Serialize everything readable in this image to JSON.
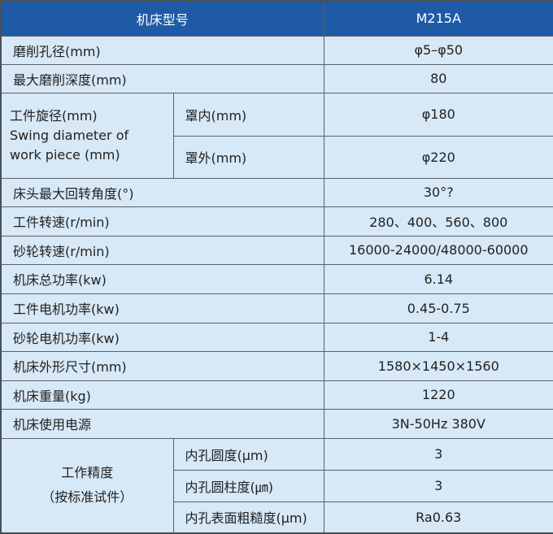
{
  "header": {
    "label": "机床型号",
    "model": "M215A"
  },
  "rows": [
    {
      "label": "磨削孔径(mm)",
      "value": "φ5–φ50"
    },
    {
      "label": "最大磨削深度(mm)",
      "value": "80"
    },
    {
      "label": "床头最大回转角度(°)",
      "value": "30°?"
    },
    {
      "label": "工件转速(r/min)",
      "value": "280、400、560、800"
    },
    {
      "label": "砂轮转速(r/min)",
      "value": "16000-24000/48000-60000"
    },
    {
      "label": "机床总功率(kw)",
      "value": "6.14"
    },
    {
      "label": "工件电机功率(kw)",
      "value": "0.45-0.75"
    },
    {
      "label": "砂轮电机功率(kw)",
      "value": "1-4"
    },
    {
      "label": "机床外形尺寸(mm)",
      "value": "1580×1450×1560"
    },
    {
      "label": "机床重量(kg)",
      "value": "1220"
    },
    {
      "label": "机床使用电源",
      "value": "3N-50Hz 380V"
    }
  ],
  "swing": {
    "label_cn": "工件旋径(mm)",
    "label_en1": "Swing diameter of",
    "label_en2": "work piece (mm)",
    "sub": [
      {
        "label": "罩内(mm)",
        "value": "φ180"
      },
      {
        "label": "罩外(mm)",
        "value": "φ220"
      }
    ]
  },
  "accuracy": {
    "label1": "工作精度",
    "label2": "（按标准试件）",
    "sub": [
      {
        "label": "内孔圆度(μm)",
        "value": "3"
      },
      {
        "label": "内孔圆柱度(㎛)",
        "value": "3"
      },
      {
        "label": "内孔表面粗糙度(μm)",
        "value": "Ra0.63"
      }
    ]
  }
}
